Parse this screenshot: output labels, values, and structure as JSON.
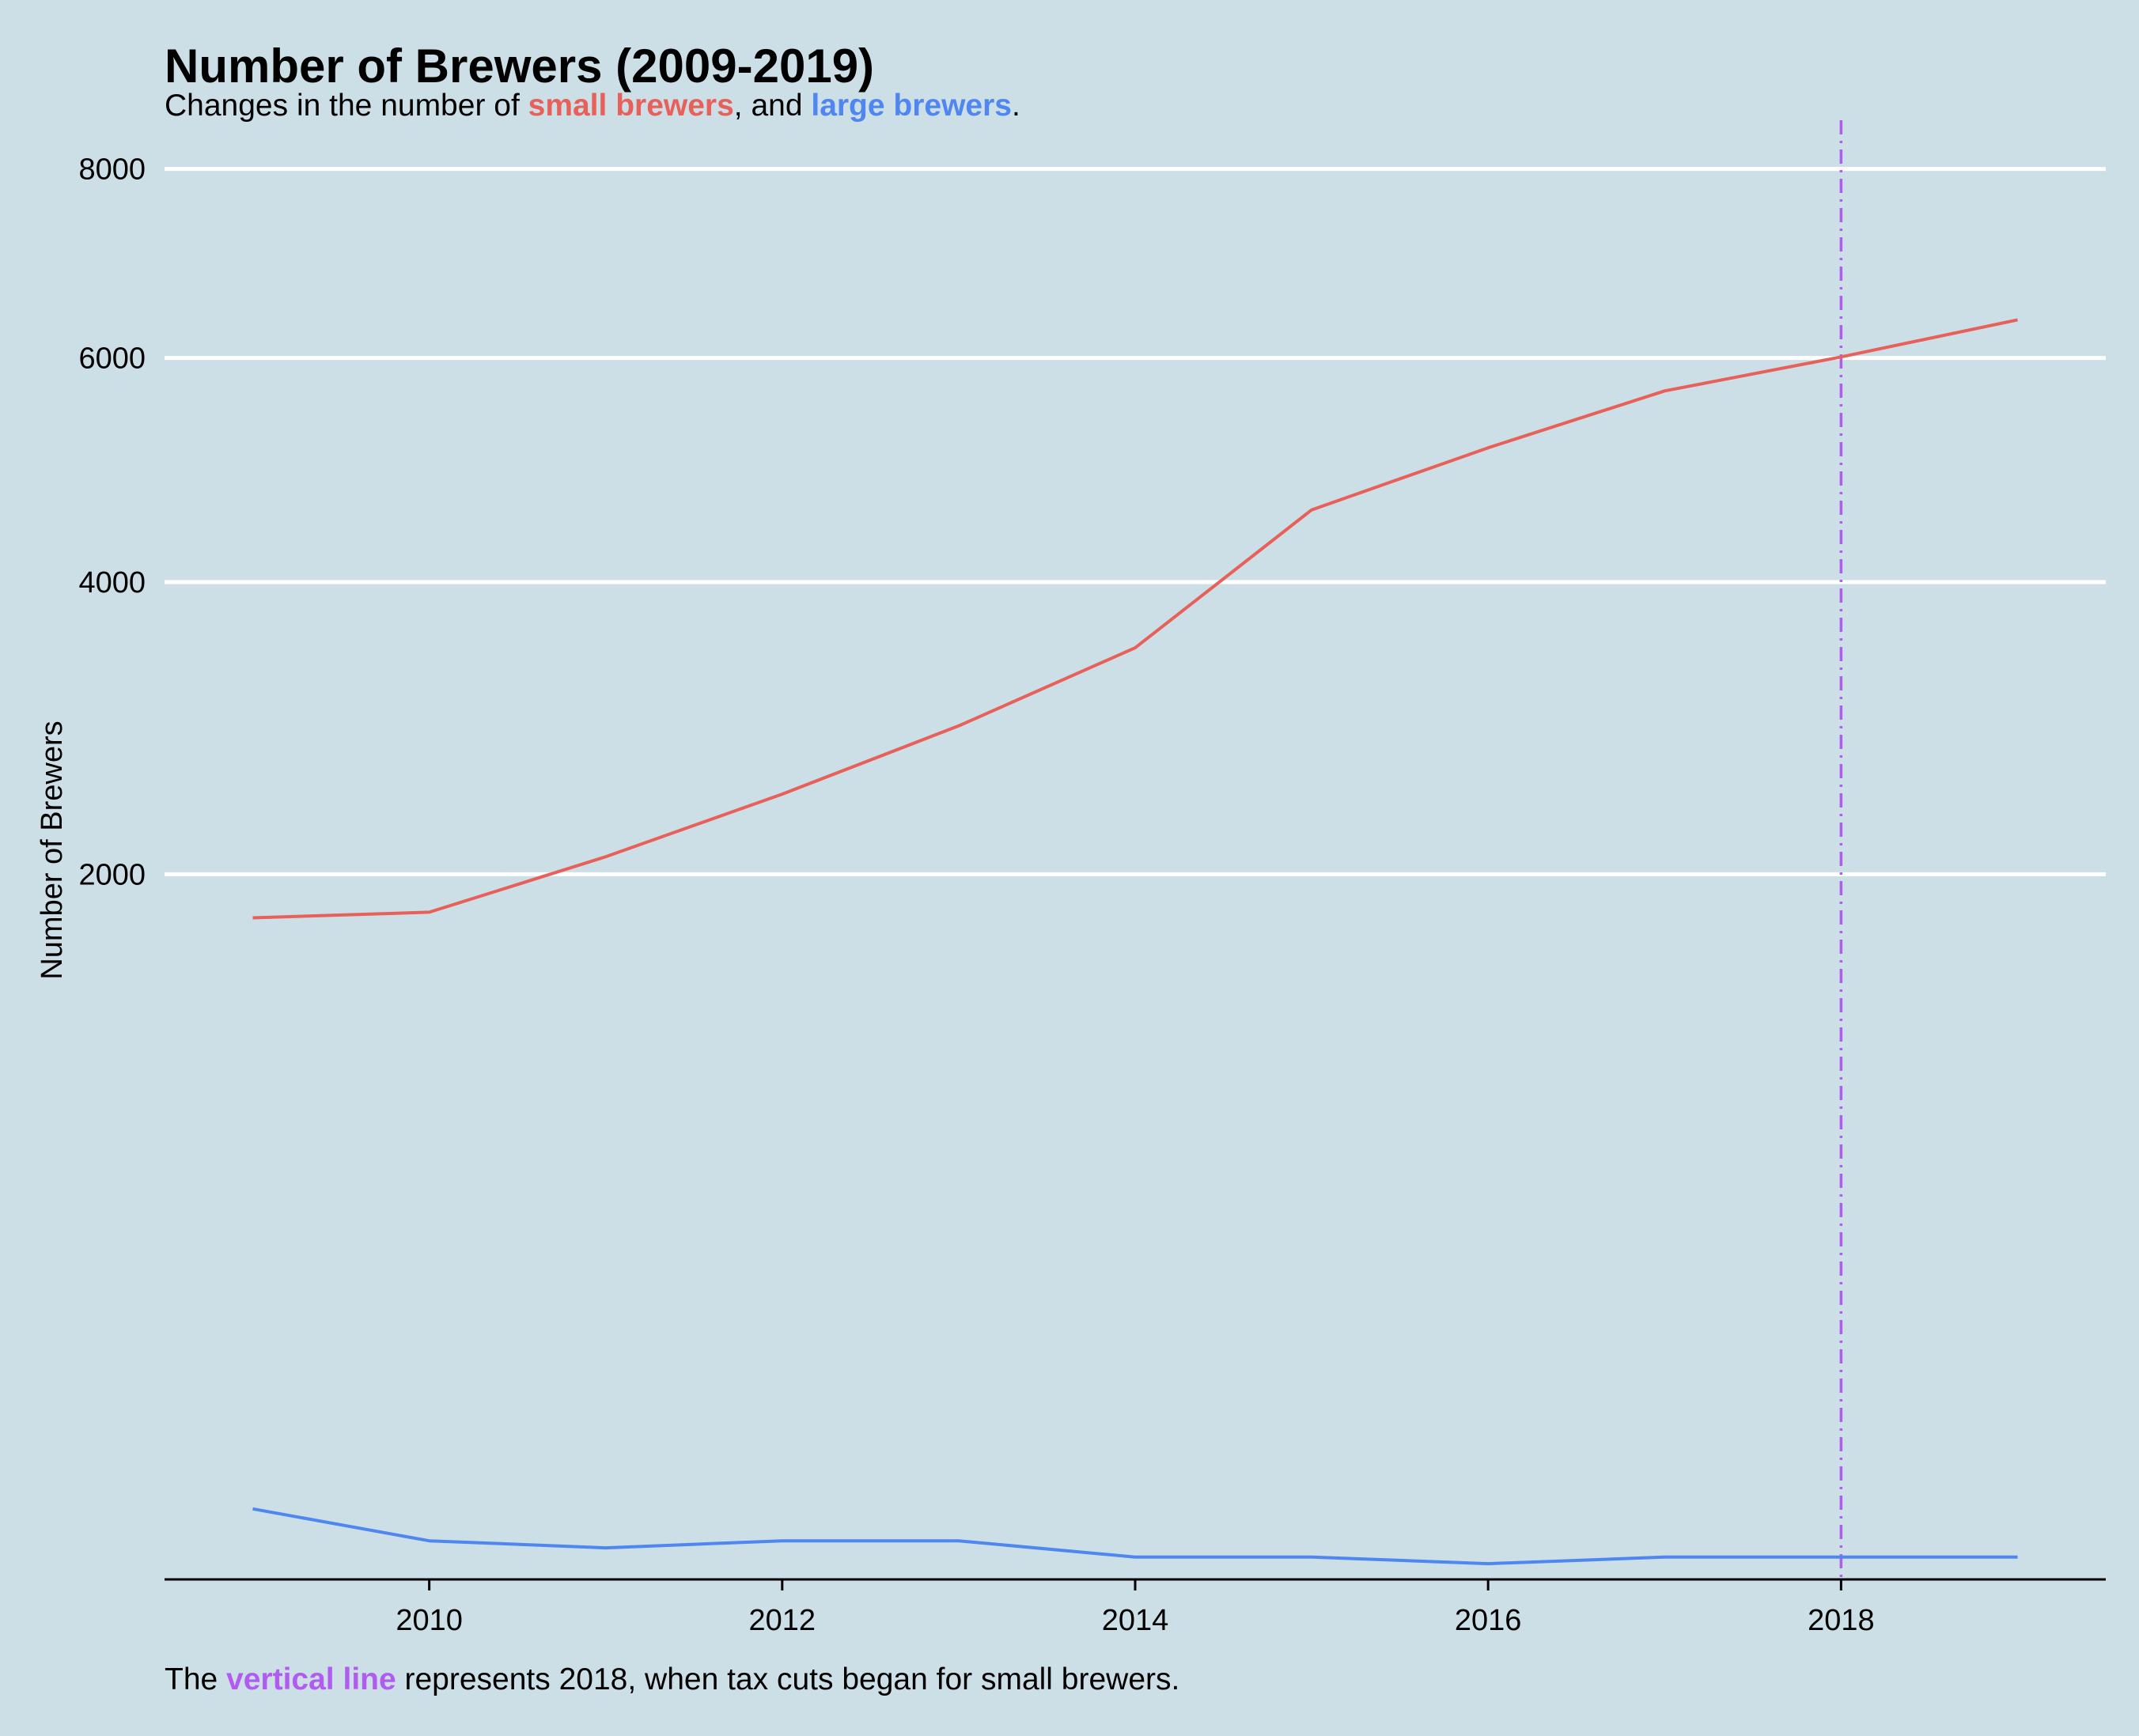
{
  "chart_data": {
    "type": "line",
    "title": "Number of Brewers (2009-2019)",
    "subtitle": {
      "prefix": "Changes in the number of ",
      "small_label": "small brewers",
      "middle": ", and ",
      "large_label": "large brewers",
      "suffix": "."
    },
    "caption": {
      "prefix": "The ",
      "highlight": "vertical line",
      "suffix": " represents 2018, when tax cuts began for small brewers."
    },
    "ylabel": "Number of Brewers",
    "xlabel": "",
    "y_scale": "sqrt",
    "ylim": [
      0,
      8600
    ],
    "xlim": [
      2008.5,
      2019.5
    ],
    "x_ticks": [
      2010,
      2012,
      2014,
      2016,
      2018
    ],
    "y_ticks": [
      2000,
      4000,
      6000,
      8000
    ],
    "grid": "horizontal",
    "vline": {
      "x": 2018,
      "style": "dotdash",
      "color": "#b15cf0"
    },
    "series": [
      {
        "name": "small brewers",
        "color": "#e8605a",
        "x": [
          2009,
          2010,
          2011,
          2012,
          2013,
          2014,
          2015,
          2016,
          2017,
          2018,
          2019
        ],
        "values": [
          1760,
          1790,
          2100,
          2480,
          2930,
          3490,
          4600,
          5150,
          5680,
          6010,
          6380
        ]
      },
      {
        "name": "large brewers",
        "color": "#4f86f0",
        "x": [
          2009,
          2010,
          2011,
          2012,
          2013,
          2014,
          2015,
          2016,
          2017,
          2018,
          2019
        ],
        "values": [
          20,
          6,
          4,
          6,
          6,
          2,
          2,
          1,
          2,
          2,
          2
        ]
      }
    ]
  }
}
